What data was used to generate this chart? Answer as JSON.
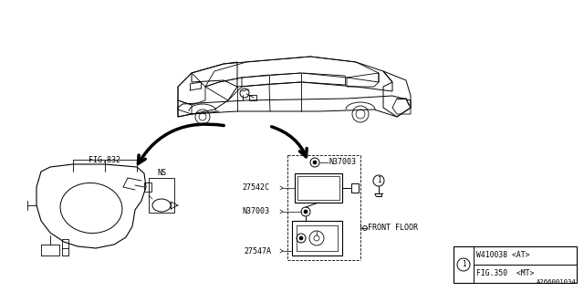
{
  "bg_color": "#ffffff",
  "line_color": "#000000",
  "part_labels": {
    "FIG832": "FIG.832",
    "NS": "NS",
    "27542C": "27542C",
    "N37003_top": "N37003",
    "N37003_bot": "N37003",
    "27547A": "27547A",
    "FRONT_FLOOR": "FRONT FLOOR"
  },
  "legend_box": {
    "circle_label": "1",
    "row1": "W410038 <AT>",
    "row2": "FIG.350  <MT>"
  },
  "part_num": "A266001034",
  "font_size_labels": 6.0,
  "font_size_legend": 5.8,
  "font_size_partnum": 5.2
}
